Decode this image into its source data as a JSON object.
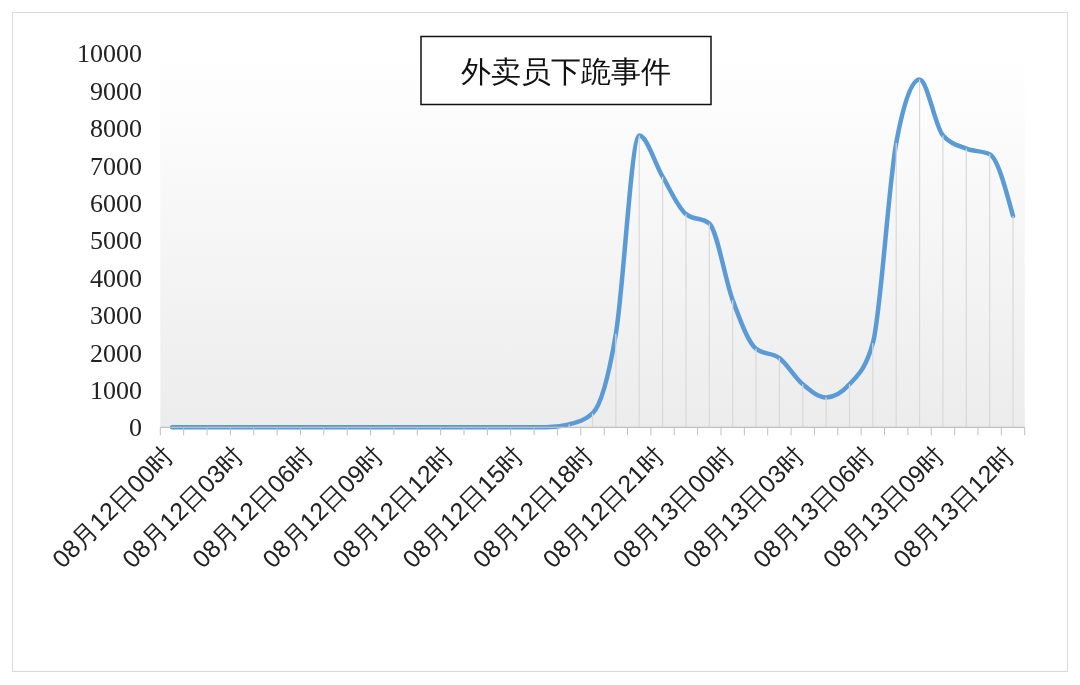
{
  "chart_data": {
    "type": "line",
    "title": "外卖员下跪事件",
    "categories": [
      "08月12日00时",
      null,
      null,
      "08月12日03时",
      null,
      null,
      "08月12日06时",
      null,
      null,
      "08月12日09时",
      null,
      null,
      "08月12日12时",
      null,
      null,
      "08月12日15时",
      null,
      null,
      "08月12日18时",
      null,
      null,
      "08月12日21时",
      null,
      null,
      "08月13日00时",
      null,
      null,
      "08月13日03时",
      null,
      null,
      "08月13日06时",
      null,
      null,
      "08月13日09时",
      null,
      null,
      "08月13日12时"
    ],
    "series": [
      {
        "color": "#5b9bd5",
        "values": [
          0,
          0,
          0,
          0,
          0,
          0,
          0,
          0,
          0,
          0,
          0,
          0,
          0,
          0,
          0,
          0,
          0,
          80,
          370,
          2500,
          7800,
          6700,
          5700,
          5450,
          3400,
          2100,
          1850,
          1150,
          800,
          1150,
          2250,
          7600,
          9300,
          7800,
          7450,
          7300,
          5650
        ]
      },
      {
        "type": "bar",
        "color": "#d9d9d9",
        "values": [
          0,
          0,
          0,
          0,
          0,
          0,
          0,
          0,
          0,
          0,
          0,
          0,
          0,
          0,
          0,
          0,
          0,
          80,
          370,
          2500,
          7800,
          6700,
          5700,
          5450,
          3400,
          2100,
          1850,
          1150,
          800,
          1150,
          2250,
          7600,
          9300,
          7800,
          7450,
          7300,
          5650
        ]
      }
    ],
    "ylim": [
      0,
      10000
    ],
    "yticks": [
      0,
      1000,
      2000,
      3000,
      4000,
      5000,
      6000,
      7000,
      8000,
      9000,
      10000
    ]
  }
}
